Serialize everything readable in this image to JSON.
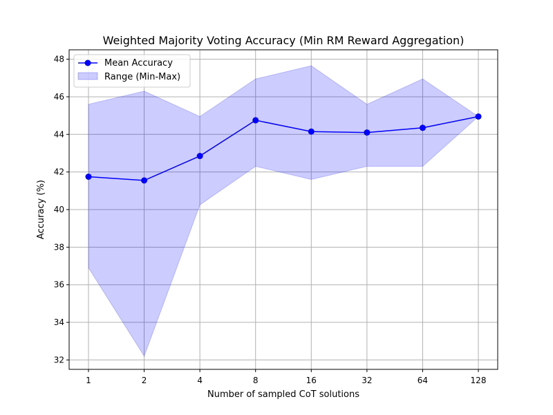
{
  "chart_data": {
    "type": "line",
    "title": "Weighted Majority Voting Accuracy (Min RM Reward Aggregation)",
    "xlabel": "Number of sampled CoT solutions",
    "ylabel": "Accuracy (%)",
    "x": [
      1,
      2,
      4,
      8,
      16,
      32,
      64,
      128
    ],
    "x_tick_labels": [
      "1",
      "2",
      "4",
      "8",
      "16",
      "32",
      "64",
      "128"
    ],
    "x_scale": "log2",
    "y_ticks": [
      32,
      34,
      36,
      38,
      40,
      42,
      44,
      46,
      48
    ],
    "y_tick_labels": [
      "32",
      "34",
      "36",
      "38",
      "40",
      "42",
      "44",
      "46",
      "48"
    ],
    "ylim": [
      31.5,
      48.5
    ],
    "grid": true,
    "legend_position": "upper-left",
    "series": [
      {
        "name": "Mean Accuracy",
        "kind": "line-marker",
        "color": "#0000ff",
        "values": [
          41.75,
          41.55,
          42.85,
          44.75,
          44.15,
          44.1,
          44.35,
          44.95
        ]
      },
      {
        "name": "Range (Min-Max)",
        "kind": "band",
        "color": "#0000ff",
        "fill_opacity": 0.2,
        "min": [
          36.9,
          32.2,
          40.25,
          42.3,
          41.6,
          42.3,
          42.3,
          44.95
        ],
        "max": [
          45.6,
          46.3,
          44.95,
          46.95,
          47.65,
          45.6,
          46.95,
          44.95
        ]
      }
    ]
  }
}
